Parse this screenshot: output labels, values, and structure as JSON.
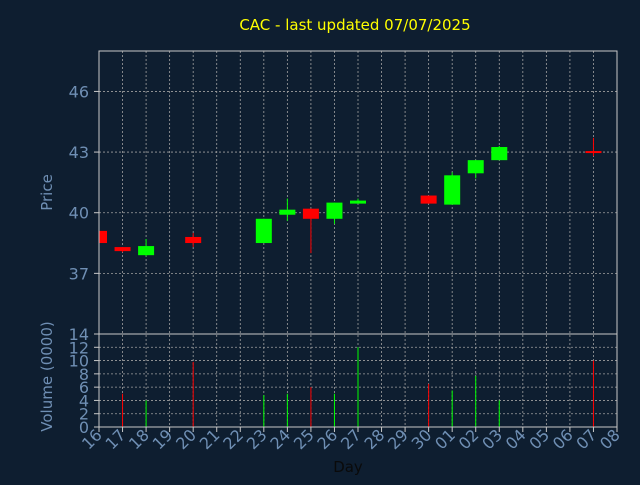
{
  "colors": {
    "background": "#0e1e30",
    "axis": "#c8c8c8",
    "grid": "#a0a0a0",
    "title": "#ffff00",
    "label": "#6f8fb4",
    "up": "#00ff00",
    "down": "#ff0000"
  },
  "chart_data": {
    "type": "candlestick",
    "title": "CAC - last updated 07/07/2025",
    "xlabel": "Day",
    "ylabel": "Price",
    "volume_ylabel": "Volume (0000)",
    "grid": true,
    "x_ticks": [
      "16",
      "17",
      "18",
      "19",
      "20",
      "21",
      "22",
      "23",
      "24",
      "25",
      "26",
      "27",
      "28",
      "29",
      "30",
      "01",
      "02",
      "03",
      "04",
      "05",
      "06",
      "07",
      "08"
    ],
    "price_ylim": [
      34.0,
      48.0
    ],
    "price_yticks": [
      37,
      40,
      43,
      46
    ],
    "volume_ylim": [
      0,
      14
    ],
    "volume_yticks": [
      0,
      2,
      4,
      6,
      8,
      10,
      12,
      14
    ],
    "candles": [
      {
        "x": "16",
        "open": 39.1,
        "high": 39.1,
        "low": 38.5,
        "close": 38.5,
        "volume": 2.5
      },
      {
        "x": "17",
        "open": 38.3,
        "high": 38.3,
        "low": 38.05,
        "close": 38.1,
        "volume": 5
      },
      {
        "x": "18",
        "open": 37.9,
        "high": 38.7,
        "low": 37.85,
        "close": 38.35,
        "volume": 4
      },
      {
        "x": "20",
        "open": 38.8,
        "high": 39.0,
        "low": 38.3,
        "close": 38.5,
        "volume": 9.8
      },
      {
        "x": "23",
        "open": 38.5,
        "high": 39.7,
        "low": 38.5,
        "close": 39.7,
        "volume": 4.8
      },
      {
        "x": "24",
        "open": 39.9,
        "high": 40.7,
        "low": 39.6,
        "close": 40.15,
        "volume": 5
      },
      {
        "x": "25",
        "open": 40.2,
        "high": 40.2,
        "low": 38.0,
        "close": 39.7,
        "volume": 6
      },
      {
        "x": "26",
        "open": 39.7,
        "high": 40.5,
        "low": 39.45,
        "close": 40.5,
        "volume": 5
      },
      {
        "x": "27",
        "open": 40.45,
        "high": 40.7,
        "low": 40.45,
        "close": 40.6,
        "volume": 12
      },
      {
        "x": "30",
        "open": 40.85,
        "high": 40.85,
        "low": 40.45,
        "close": 40.45,
        "volume": 6.5
      },
      {
        "x": "01",
        "open": 40.4,
        "high": 42.0,
        "low": 40.4,
        "close": 41.85,
        "volume": 5.5
      },
      {
        "x": "02",
        "open": 41.95,
        "high": 42.6,
        "low": 41.7,
        "close": 42.6,
        "volume": 7.7
      },
      {
        "x": "03",
        "open": 42.6,
        "high": 43.3,
        "low": 42.6,
        "close": 43.25,
        "volume": 4
      },
      {
        "x": "07",
        "open": 43.05,
        "high": 43.7,
        "low": 42.8,
        "close": 43.0,
        "volume": 10
      }
    ]
  }
}
